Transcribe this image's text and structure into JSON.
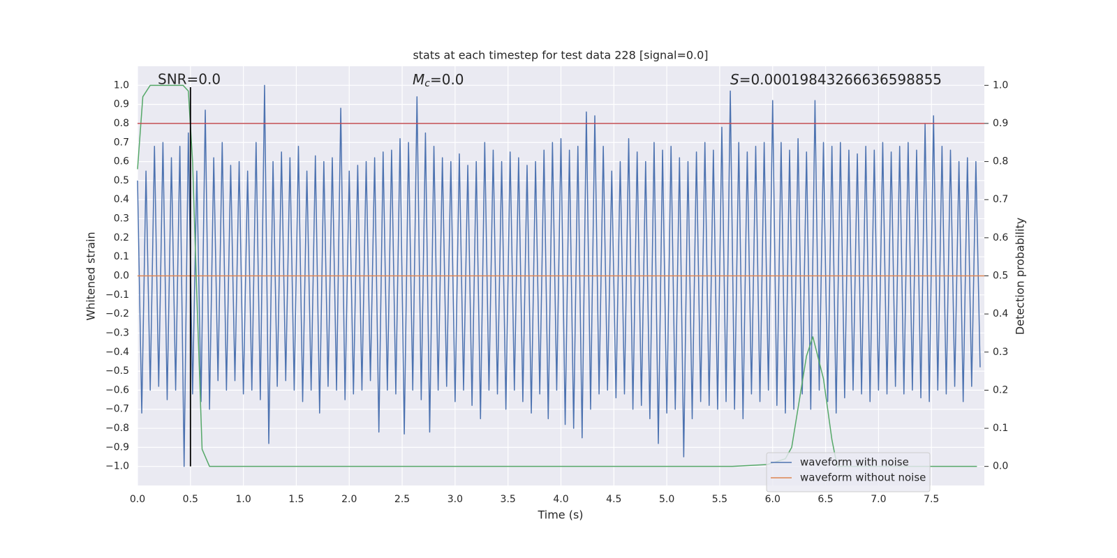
{
  "chart_data": {
    "type": "line",
    "title": "stats at each timestep for test data 228 [signal=0.0]",
    "xlabel": "Time (s)",
    "ylabel": "Whitened strain",
    "y2label": "Detection probability",
    "xlim": [
      0,
      8.0
    ],
    "ylim": [
      -1.1,
      1.1
    ],
    "y2lim": [
      -0.05,
      1.05
    ],
    "xticks": [
      {
        "value": 0,
        "label": "0.0"
      },
      {
        "value": 0.5,
        "label": "0.5"
      },
      {
        "value": 1,
        "label": "1.0"
      },
      {
        "value": 1.5,
        "label": "1.5"
      },
      {
        "value": 2,
        "label": "2.0"
      },
      {
        "value": 2.5,
        "label": "2.5"
      },
      {
        "value": 3,
        "label": "3.0"
      },
      {
        "value": 3.5,
        "label": "3.5"
      },
      {
        "value": 4,
        "label": "4.0"
      },
      {
        "value": 4.5,
        "label": "4.5"
      },
      {
        "value": 5,
        "label": "5.0"
      },
      {
        "value": 5.5,
        "label": "5.5"
      },
      {
        "value": 6,
        "label": "6.0"
      },
      {
        "value": 6.5,
        "label": "6.5"
      },
      {
        "value": 7,
        "label": "7.0"
      },
      {
        "value": 7.5,
        "label": "7.5"
      }
    ],
    "yticks": [
      {
        "value": -1,
        "label": "−1.0"
      },
      {
        "value": -0.9,
        "label": "−0.9"
      },
      {
        "value": -0.8,
        "label": "−0.8"
      },
      {
        "value": -0.7,
        "label": "−0.7"
      },
      {
        "value": -0.6,
        "label": "−0.6"
      },
      {
        "value": -0.5,
        "label": "−0.5"
      },
      {
        "value": -0.4,
        "label": "−0.4"
      },
      {
        "value": -0.3,
        "label": "−0.3"
      },
      {
        "value": -0.2,
        "label": "−0.2"
      },
      {
        "value": -0.1,
        "label": "−0.1"
      },
      {
        "value": 0,
        "label": "0.0"
      },
      {
        "value": 0.1,
        "label": "0.1"
      },
      {
        "value": 0.2,
        "label": "0.2"
      },
      {
        "value": 0.3,
        "label": "0.3"
      },
      {
        "value": 0.4,
        "label": "0.4"
      },
      {
        "value": 0.5,
        "label": "0.5"
      },
      {
        "value": 0.6,
        "label": "0.6"
      },
      {
        "value": 0.7,
        "label": "0.7"
      },
      {
        "value": 0.8,
        "label": "0.8"
      },
      {
        "value": 0.9,
        "label": "0.9"
      },
      {
        "value": 1,
        "label": "1.0"
      }
    ],
    "y2ticks": [
      {
        "value": 0,
        "label": "0.0"
      },
      {
        "value": 0.1,
        "label": "0.1"
      },
      {
        "value": 0.2,
        "label": "0.2"
      },
      {
        "value": 0.3,
        "label": "0.3"
      },
      {
        "value": 0.4,
        "label": "0.4"
      },
      {
        "value": 0.5,
        "label": "0.5"
      },
      {
        "value": 0.6,
        "label": "0.6"
      },
      {
        "value": 0.7,
        "label": "0.7"
      },
      {
        "value": 0.8,
        "label": "0.8"
      },
      {
        "value": 0.9,
        "label": "0.9"
      },
      {
        "value": 1,
        "label": "1.0"
      }
    ],
    "grid": true,
    "legend": "lower right",
    "series": [
      {
        "name": "waveform with noise",
        "color": "#4c72b0",
        "x": [
          0,
          0.04,
          0.08,
          0.12,
          0.16,
          0.2,
          0.24,
          0.28,
          0.32,
          0.36,
          0.4,
          0.44,
          0.48,
          0.52,
          0.56,
          0.6,
          0.64,
          0.68,
          0.72,
          0.76,
          0.8,
          0.84,
          0.88,
          0.92,
          0.96,
          1.0,
          1.04,
          1.08,
          1.12,
          1.16,
          1.2,
          1.24,
          1.28,
          1.32,
          1.36,
          1.4,
          1.44,
          1.48,
          1.52,
          1.56,
          1.6,
          1.64,
          1.68,
          1.72,
          1.76,
          1.8,
          1.84,
          1.88,
          1.92,
          1.96,
          2.0,
          2.04,
          2.08,
          2.12,
          2.16,
          2.2,
          2.24,
          2.28,
          2.32,
          2.36,
          2.4,
          2.44,
          2.48,
          2.52,
          2.56,
          2.6,
          2.64,
          2.68,
          2.72,
          2.76,
          2.8,
          2.84,
          2.88,
          2.92,
          2.96,
          3.0,
          3.04,
          3.08,
          3.12,
          3.16,
          3.2,
          3.24,
          3.28,
          3.32,
          3.36,
          3.4,
          3.44,
          3.48,
          3.52,
          3.56,
          3.6,
          3.64,
          3.68,
          3.72,
          3.76,
          3.8,
          3.84,
          3.88,
          3.92,
          3.96,
          4.0,
          4.04,
          4.08,
          4.12,
          4.16,
          4.2,
          4.24,
          4.28,
          4.32,
          4.36,
          4.4,
          4.44,
          4.48,
          4.52,
          4.56,
          4.6,
          4.64,
          4.68,
          4.72,
          4.76,
          4.8,
          4.84,
          4.88,
          4.92,
          4.96,
          5.0,
          5.04,
          5.08,
          5.12,
          5.16,
          5.2,
          5.24,
          5.28,
          5.32,
          5.36,
          5.4,
          5.44,
          5.48,
          5.52,
          5.56,
          5.6,
          5.64,
          5.68,
          5.72,
          5.76,
          5.8,
          5.84,
          5.88,
          5.92,
          5.96,
          6.0,
          6.04,
          6.08,
          6.12,
          6.16,
          6.2,
          6.24,
          6.28,
          6.32,
          6.36,
          6.4,
          6.44,
          6.48,
          6.52,
          6.56,
          6.6,
          6.64,
          6.68,
          6.72,
          6.76,
          6.8,
          6.84,
          6.88,
          6.92,
          6.96,
          7.0,
          7.04,
          7.08,
          7.12,
          7.16,
          7.2,
          7.24,
          7.28,
          7.32,
          7.36,
          7.4,
          7.44,
          7.48,
          7.52,
          7.56,
          7.6,
          7.64,
          7.68,
          7.72,
          7.76,
          7.8,
          7.84,
          7.88,
          7.92,
          7.96
        ],
        "values": [
          0.5,
          -0.72,
          0.55,
          -0.6,
          0.68,
          -0.58,
          0.7,
          -0.65,
          0.62,
          -0.6,
          0.68,
          -1.0,
          0.75,
          -0.62,
          0.55,
          -0.66,
          0.87,
          -0.7,
          0.62,
          -0.55,
          0.7,
          -0.6,
          0.58,
          -0.55,
          0.6,
          -0.62,
          0.55,
          -0.6,
          0.7,
          -0.65,
          1.0,
          -0.88,
          0.6,
          -0.58,
          0.65,
          -0.55,
          0.62,
          -0.6,
          0.68,
          -0.66,
          0.55,
          -0.6,
          0.63,
          -0.72,
          0.6,
          -0.58,
          0.62,
          -0.6,
          0.88,
          -0.65,
          0.55,
          -0.62,
          0.58,
          -0.6,
          0.6,
          -0.55,
          0.62,
          -0.82,
          0.65,
          -0.6,
          0.66,
          -0.62,
          0.72,
          -0.83,
          0.7,
          -0.6,
          0.94,
          -0.65,
          0.75,
          -0.82,
          0.68,
          -0.6,
          0.62,
          -0.58,
          0.6,
          -0.66,
          0.64,
          -0.6,
          0.58,
          -0.68,
          0.6,
          -0.75,
          0.7,
          -0.6,
          0.66,
          -0.62,
          0.6,
          -0.7,
          0.65,
          -0.6,
          0.62,
          -0.66,
          0.58,
          -0.72,
          0.6,
          -0.62,
          0.66,
          -0.75,
          0.7,
          -0.6,
          0.72,
          -0.78,
          0.66,
          -0.8,
          0.68,
          -0.85,
          0.86,
          -0.7,
          0.84,
          -0.62,
          0.68,
          -0.6,
          0.55,
          -0.64,
          0.6,
          -0.62,
          0.72,
          -0.7,
          0.65,
          -0.68,
          0.6,
          -0.75,
          0.7,
          -0.88,
          0.66,
          -0.72,
          0.68,
          -0.7,
          0.62,
          -0.95,
          0.6,
          -0.75,
          0.65,
          -0.66,
          0.7,
          -0.68,
          0.66,
          -0.7,
          0.78,
          -0.66,
          0.97,
          -0.7,
          0.7,
          -0.75,
          0.65,
          -0.62,
          0.68,
          -0.66,
          0.7,
          -0.6,
          0.92,
          -0.68,
          0.7,
          -0.72,
          0.66,
          -0.7,
          0.72,
          -0.62,
          0.65,
          -0.7,
          0.92,
          -0.6,
          0.7,
          -0.66,
          0.68,
          -0.72,
          0.7,
          -0.64,
          0.66,
          -0.6,
          0.64,
          -0.62,
          0.68,
          -0.66,
          0.66,
          -0.6,
          0.7,
          -0.62,
          0.65,
          -0.58,
          0.68,
          -0.62,
          0.7,
          -0.6,
          0.66,
          -0.64,
          0.8,
          -0.66,
          0.84,
          -0.6,
          0.68,
          -0.62,
          0.66,
          -0.58,
          0.6,
          -0.66,
          0.62,
          -0.58,
          0.6,
          -0.48
        ]
      },
      {
        "name": "waveform without noise",
        "color": "#dd8452",
        "x": [
          0,
          8.0
        ],
        "values": [
          0,
          0
        ]
      },
      {
        "color": "#55a868",
        "axis": "y2",
        "x": [
          0,
          0.05,
          0.12,
          0.43,
          0.48,
          0.52,
          0.56,
          0.61,
          0.68,
          5.62,
          5.95,
          6.12,
          6.18,
          6.32,
          6.38,
          6.48,
          6.56,
          6.61,
          7.93
        ],
        "values": [
          0.78,
          0.97,
          1.0,
          1.0,
          0.985,
          0.8,
          0.45,
          0.045,
          0.0,
          0.0,
          0.005,
          0.02,
          0.05,
          0.29,
          0.34,
          0.23,
          0.07,
          0.0,
          0.0
        ]
      }
    ],
    "hlines": [
      {
        "value": 0.9,
        "axis": "y2",
        "color": "#c44e52"
      }
    ],
    "vline": {
      "x": 0.5,
      "ymin": -1.0,
      "ymax": 0.99,
      "color": "#000000"
    },
    "annotations": [
      {
        "text": "SNR=0.0"
      },
      {
        "symbol": "M",
        "subscript": "c",
        "text": "=0.0"
      },
      {
        "symbol": "S",
        "text": "=0.00019843266636598855"
      }
    ]
  }
}
